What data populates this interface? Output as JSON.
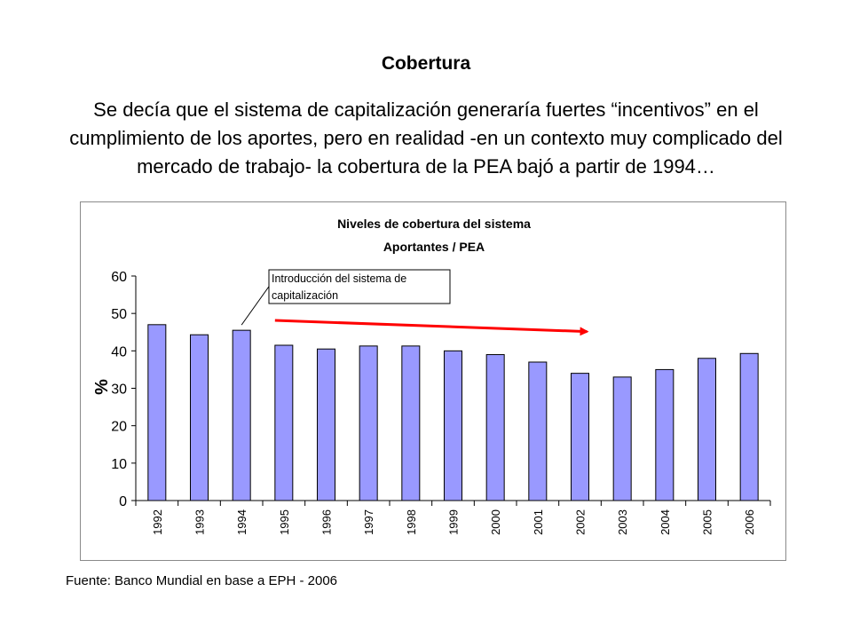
{
  "slide": {
    "title": "Cobertura",
    "text": "Se decía que el sistema de capitalización generaría fuertes  “incentivos” en el cumplimiento de los aportes, pero en realidad -en un contexto muy complicado del mercado de trabajo- la cobertura de la PEA bajó a partir de 1994…"
  },
  "chart_data": {
    "type": "bar",
    "title": "Niveles de cobertura del sistema",
    "subtitle": "Aportantes / PEA",
    "ylabel": "%",
    "xlabel": "",
    "ylim": [
      0,
      60
    ],
    "yticks": [
      0,
      10,
      20,
      30,
      40,
      50,
      60
    ],
    "categories": [
      "1992",
      "1993",
      "1994",
      "1995",
      "1996",
      "1997",
      "1998",
      "1999",
      "2000",
      "2001",
      "2002",
      "2003",
      "2004",
      "2005",
      "2006"
    ],
    "values": [
      47,
      44.3,
      45.5,
      41.5,
      40.5,
      41.3,
      41.3,
      40,
      39,
      37,
      34,
      33,
      35,
      38,
      39.3
    ],
    "bar_color": "#9999ff",
    "trend_arrow_color": "#ff0000",
    "annotation": {
      "line1": "Introducción del sistema de",
      "line2": "capitalización",
      "target_category": "1994"
    },
    "trend_arrow": {
      "from_category": "1995",
      "to_category": "2002"
    }
  },
  "footer": {
    "source": "Fuente: Banco Mundial en base a EPH - 2006"
  }
}
